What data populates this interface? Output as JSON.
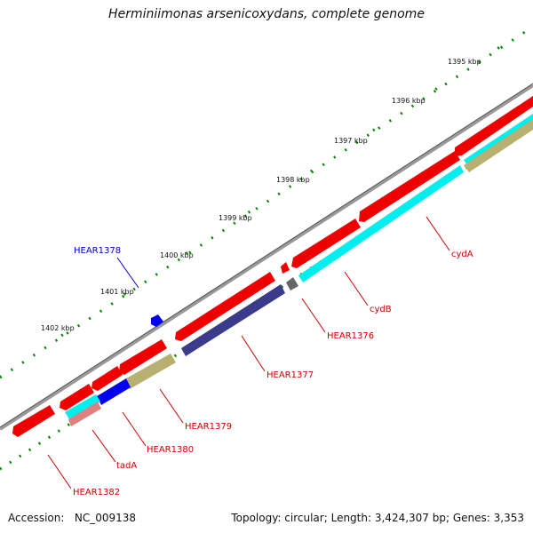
{
  "title": "Herminiimonas arsenicoxydans, complete genome",
  "footer": {
    "accession_label": "Accession:",
    "accession": "NC_009138",
    "topology_label": "Topology:",
    "topology": "circular",
    "length_label": "Length:",
    "length": "3,424,307 bp",
    "genes_label": "Genes:",
    "genes": "3,353"
  },
  "kbp_labels": [
    "1395 kbp",
    "1396 kbp",
    "1397 kbp",
    "1398 kbp",
    "1399 kbp",
    "1400 kbp",
    "1401 kbp",
    "1402 kbp"
  ],
  "gene_labels": [
    {
      "text": "cydA",
      "color": "#cc0000"
    },
    {
      "text": "cydB",
      "color": "#cc0000"
    },
    {
      "text": "HEAR1376",
      "color": "#cc0000"
    },
    {
      "text": "HEAR1377",
      "color": "#cc0000"
    },
    {
      "text": "HEAR1379",
      "color": "#cc0000"
    },
    {
      "text": "HEAR1380",
      "color": "#cc0000"
    },
    {
      "text": "tadA",
      "color": "#cc0000"
    },
    {
      "text": "HEAR1382",
      "color": "#cc0000"
    },
    {
      "text": "HEAR1378",
      "color": "#0000cc"
    }
  ],
  "colors": {
    "backbone": "#888888",
    "forward_gene": "#ee0000",
    "cog_cyan": "#00eeee",
    "cog_navy": "#3b3b8c",
    "cog_olive": "#b8b070",
    "cog_blue": "#0000ee",
    "cog_pink": "#e08080",
    "cog_grey": "#666666",
    "tick": "#008800",
    "label_red": "#cc0000",
    "label_blue": "#0000cc"
  }
}
